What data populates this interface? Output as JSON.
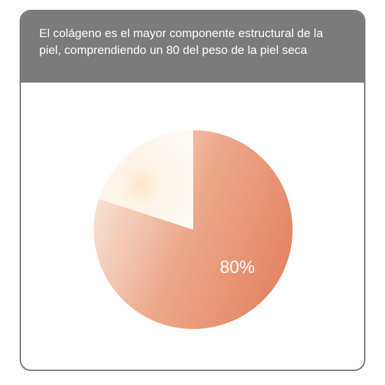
{
  "title": "El colágeno es el mayor componente estructural de la piel, comprendiendo un 80 del peso de la piel seca",
  "chart_data": {
    "type": "pie",
    "title": "El colágeno es el mayor componente estructural de la piel, comprendiendo un 80 del peso de la piel seca",
    "slices": [
      {
        "label": "80%",
        "value": 80,
        "color": "#e4896a"
      },
      {
        "label": "",
        "value": 20,
        "color": "#fdf6ee"
      }
    ],
    "start_angle_deg": 0,
    "direction": "clockwise"
  }
}
